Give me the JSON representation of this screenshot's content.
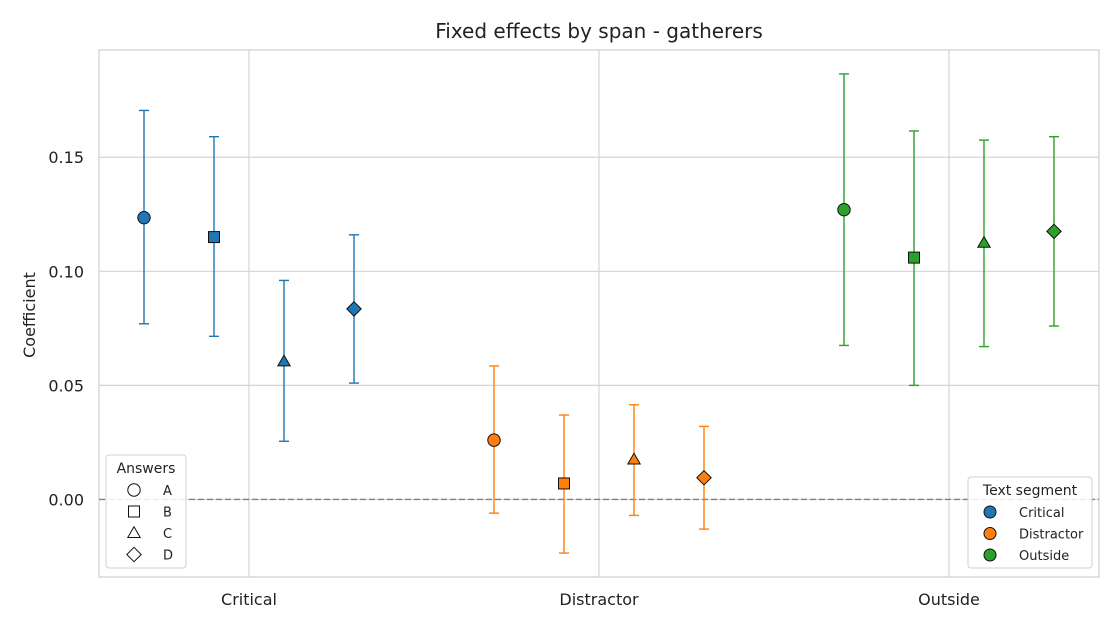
{
  "chart_data": {
    "type": "scatter",
    "title": "Fixed effects by span - gatherers",
    "xlabel": "",
    "ylabel": "Coefficient",
    "categories": [
      "Critical",
      "Distractor",
      "Outside"
    ],
    "ylim": [
      -0.034,
      0.197
    ],
    "yticks": [
      0.0,
      0.05,
      0.1,
      0.15
    ],
    "ytick_labels": [
      "0.00",
      "0.05",
      "0.10",
      "0.15"
    ],
    "grid": true,
    "reference_line": 0.0,
    "series": [
      {
        "name": "Critical",
        "color": "#1f77b4",
        "category": "Critical",
        "points": [
          {
            "answer": "A",
            "value": 0.1235,
            "low": 0.077,
            "high": 0.1705
          },
          {
            "answer": "B",
            "value": 0.115,
            "low": 0.0715,
            "high": 0.159
          },
          {
            "answer": "C",
            "value": 0.0605,
            "low": 0.0255,
            "high": 0.096
          },
          {
            "answer": "D",
            "value": 0.0835,
            "low": 0.051,
            "high": 0.116
          }
        ]
      },
      {
        "name": "Distractor",
        "color": "#ff7f0e",
        "category": "Distractor",
        "points": [
          {
            "answer": "A",
            "value": 0.026,
            "low": -0.006,
            "high": 0.0585
          },
          {
            "answer": "B",
            "value": 0.007,
            "low": -0.0235,
            "high": 0.037
          },
          {
            "answer": "C",
            "value": 0.0175,
            "low": -0.007,
            "high": 0.0415
          },
          {
            "answer": "D",
            "value": 0.0095,
            "low": -0.013,
            "high": 0.032
          }
        ]
      },
      {
        "name": "Outside",
        "color": "#2ca02c",
        "category": "Outside",
        "points": [
          {
            "answer": "A",
            "value": 0.127,
            "low": 0.0675,
            "high": 0.1865
          },
          {
            "answer": "B",
            "value": 0.106,
            "low": 0.05,
            "high": 0.1615
          },
          {
            "answer": "C",
            "value": 0.1125,
            "low": 0.067,
            "high": 0.1575
          },
          {
            "answer": "D",
            "value": 0.1175,
            "low": 0.076,
            "high": 0.159
          }
        ]
      }
    ],
    "legend_answers": {
      "title": "Answers",
      "placement": "lower-left",
      "items": [
        {
          "label": "A",
          "marker": "circle"
        },
        {
          "label": "B",
          "marker": "square"
        },
        {
          "label": "C",
          "marker": "triangle"
        },
        {
          "label": "D",
          "marker": "diamond"
        }
      ]
    },
    "legend_segments": {
      "title": "Text segment",
      "placement": "lower-right",
      "items": [
        {
          "label": "Critical",
          "color": "#1f77b4"
        },
        {
          "label": "Distractor",
          "color": "#ff7f0e"
        },
        {
          "label": "Outside",
          "color": "#2ca02c"
        }
      ]
    }
  }
}
